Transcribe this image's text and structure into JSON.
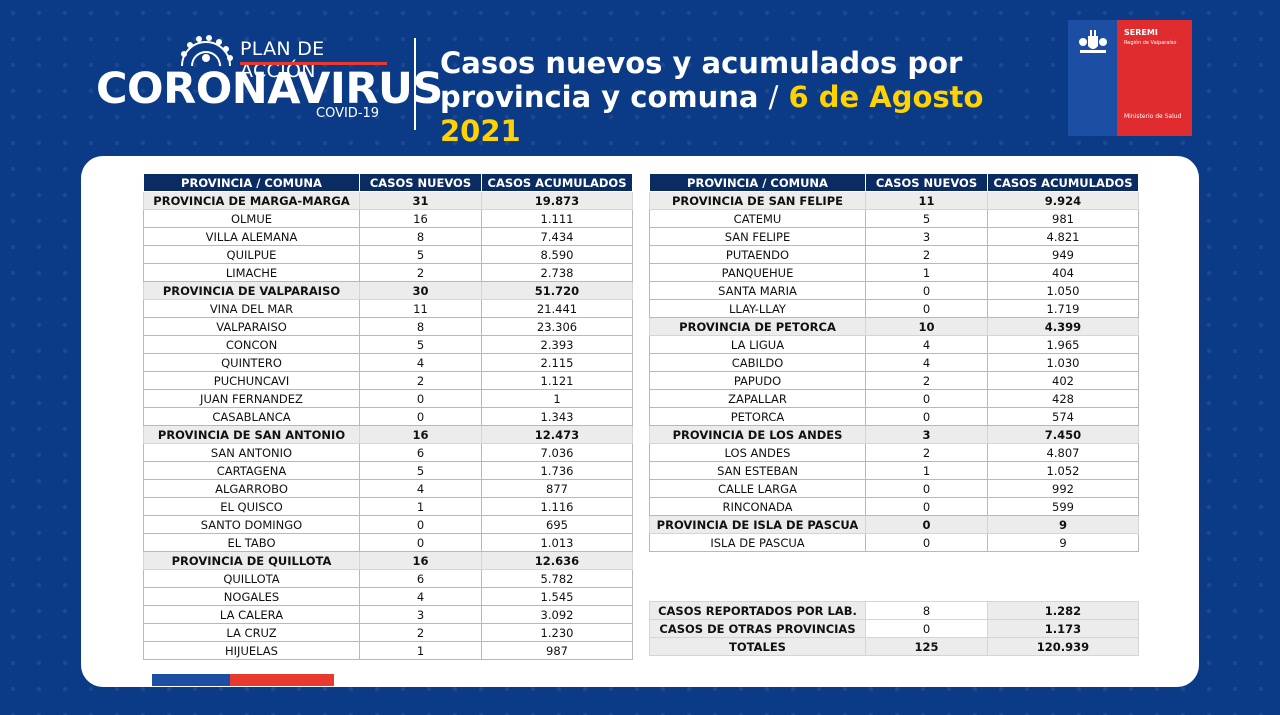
{
  "header": {
    "plan_label": "PLAN DE ACCIÓN",
    "brand": "CORONAVIRUS",
    "covid_label": "COVID-19",
    "title_line1": "Casos nuevos y acumulados por",
    "title_line2": "provincia y comuna",
    "title_sep": "/",
    "title_date": "6 de Agosto 2021",
    "seremi_title": "SEREMI",
    "seremi_region": "Región de Valparaíso",
    "seremi_ministry": "Ministerio de Salud"
  },
  "columns": [
    "PROVINCIA / COMUNA",
    "CASOS NUEVOS",
    "CASOS ACUMULADOS"
  ],
  "left_table": [
    {
      "name": "PROVINCIA DE MARGA-MARGA",
      "nuevos": "31",
      "acumulados": "19.873",
      "province": true
    },
    {
      "name": "OLMUE",
      "nuevos": "16",
      "acumulados": "1.111"
    },
    {
      "name": "VILLA ALEMANA",
      "nuevos": "8",
      "acumulados": "7.434"
    },
    {
      "name": "QUILPUE",
      "nuevos": "5",
      "acumulados": "8.590"
    },
    {
      "name": "LIMACHE",
      "nuevos": "2",
      "acumulados": "2.738"
    },
    {
      "name": "PROVINCIA DE VALPARAISO",
      "nuevos": "30",
      "acumulados": "51.720",
      "province": true
    },
    {
      "name": "VINA DEL MAR",
      "nuevos": "11",
      "acumulados": "21.441"
    },
    {
      "name": "VALPARAISO",
      "nuevos": "8",
      "acumulados": "23.306"
    },
    {
      "name": "CONCON",
      "nuevos": "5",
      "acumulados": "2.393"
    },
    {
      "name": "QUINTERO",
      "nuevos": "4",
      "acumulados": "2.115"
    },
    {
      "name": "PUCHUNCAVI",
      "nuevos": "2",
      "acumulados": "1.121"
    },
    {
      "name": "JUAN FERNANDEZ",
      "nuevos": "0",
      "acumulados": "1"
    },
    {
      "name": "CASABLANCA",
      "nuevos": "0",
      "acumulados": "1.343"
    },
    {
      "name": "PROVINCIA DE SAN ANTONIO",
      "nuevos": "16",
      "acumulados": "12.473",
      "province": true
    },
    {
      "name": "SAN ANTONIO",
      "nuevos": "6",
      "acumulados": "7.036"
    },
    {
      "name": "CARTAGENA",
      "nuevos": "5",
      "acumulados": "1.736"
    },
    {
      "name": "ALGARROBO",
      "nuevos": "4",
      "acumulados": "877"
    },
    {
      "name": "EL QUISCO",
      "nuevos": "1",
      "acumulados": "1.116"
    },
    {
      "name": "SANTO DOMINGO",
      "nuevos": "0",
      "acumulados": "695"
    },
    {
      "name": "EL TABO",
      "nuevos": "0",
      "acumulados": "1.013"
    },
    {
      "name": "PROVINCIA DE QUILLOTA",
      "nuevos": "16",
      "acumulados": "12.636",
      "province": true
    },
    {
      "name": "QUILLOTA",
      "nuevos": "6",
      "acumulados": "5.782"
    },
    {
      "name": "NOGALES",
      "nuevos": "4",
      "acumulados": "1.545"
    },
    {
      "name": "LA CALERA",
      "nuevos": "3",
      "acumulados": "3.092"
    },
    {
      "name": "LA CRUZ",
      "nuevos": "2",
      "acumulados": "1.230"
    },
    {
      "name": "HIJUELAS",
      "nuevos": "1",
      "acumulados": "987"
    }
  ],
  "right_table": [
    {
      "name": "PROVINCIA DE SAN FELIPE",
      "nuevos": "11",
      "acumulados": "9.924",
      "province": true
    },
    {
      "name": "CATEMU",
      "nuevos": "5",
      "acumulados": "981"
    },
    {
      "name": "SAN FELIPE",
      "nuevos": "3",
      "acumulados": "4.821"
    },
    {
      "name": "PUTAENDO",
      "nuevos": "2",
      "acumulados": "949"
    },
    {
      "name": "PANQUEHUE",
      "nuevos": "1",
      "acumulados": "404"
    },
    {
      "name": "SANTA MARIA",
      "nuevos": "0",
      "acumulados": "1.050"
    },
    {
      "name": "LLAY-LLAY",
      "nuevos": "0",
      "acumulados": "1.719"
    },
    {
      "name": "PROVINCIA DE PETORCA",
      "nuevos": "10",
      "acumulados": "4.399",
      "province": true
    },
    {
      "name": "LA LIGUA",
      "nuevos": "4",
      "acumulados": "1.965"
    },
    {
      "name": "CABILDO",
      "nuevos": "4",
      "acumulados": "1.030"
    },
    {
      "name": "PAPUDO",
      "nuevos": "2",
      "acumulados": "402"
    },
    {
      "name": "ZAPALLAR",
      "nuevos": "0",
      "acumulados": "428"
    },
    {
      "name": "PETORCA",
      "nuevos": "0",
      "acumulados": "574"
    },
    {
      "name": "PROVINCIA DE LOS ANDES",
      "nuevos": "3",
      "acumulados": "7.450",
      "province": true
    },
    {
      "name": "LOS ANDES",
      "nuevos": "2",
      "acumulados": "4.807"
    },
    {
      "name": "SAN ESTEBAN",
      "nuevos": "1",
      "acumulados": "1.052"
    },
    {
      "name": "CALLE LARGA",
      "nuevos": "0",
      "acumulados": "992"
    },
    {
      "name": "RINCONADA",
      "nuevos": "0",
      "acumulados": "599"
    },
    {
      "name": "PROVINCIA DE ISLA DE PASCUA",
      "nuevos": "0",
      "acumulados": "9",
      "province": true
    },
    {
      "name": "ISLA DE PASCUA",
      "nuevos": "0",
      "acumulados": "9"
    }
  ],
  "totals": [
    {
      "name": "CASOS REPORTADOS POR LAB.",
      "nuevos": "8",
      "acumulados": "1.282"
    },
    {
      "name": "CASOS DE OTRAS PROVINCIAS",
      "nuevos": "0",
      "acumulados": "1.173"
    },
    {
      "name": "TOTALES",
      "nuevos": "125",
      "acumulados": "120.939"
    }
  ],
  "colors": {
    "background": "#0b3a86",
    "header_row": "#0b2b63",
    "date_yellow": "#ffd200",
    "accent_red": "#e8392f",
    "province_row": "#ececec"
  }
}
